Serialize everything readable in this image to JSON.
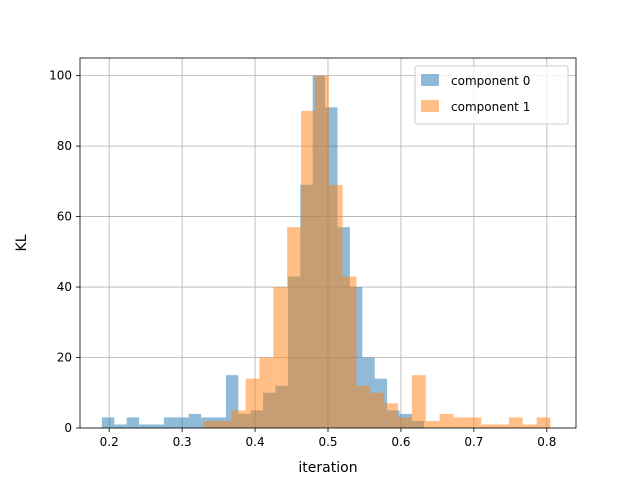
{
  "chart_data": {
    "type": "bar",
    "subtype": "overlapping-histogram",
    "title": "",
    "xlabel": "iteration",
    "ylabel": "KL",
    "xlim": [
      0.16,
      0.84
    ],
    "ylim": [
      0,
      105
    ],
    "xticks": [
      0.2,
      0.3,
      0.4,
      0.5,
      0.6,
      0.7,
      0.8
    ],
    "xtick_labels": [
      "0.2",
      "0.3",
      "0.4",
      "0.5",
      "0.6",
      "0.7",
      "0.8"
    ],
    "yticks": [
      0,
      20,
      40,
      60,
      80,
      100
    ],
    "ytick_labels": [
      "0",
      "20",
      "40",
      "60",
      "80",
      "100"
    ],
    "grid": true,
    "legend": "top-right",
    "series": [
      {
        "name": "component 0",
        "color": "#1f77b4",
        "alpha": 0.5,
        "bin_edges": [
          0.19,
          0.207,
          0.224,
          0.241,
          0.258,
          0.275,
          0.292,
          0.309,
          0.326,
          0.343,
          0.36,
          0.377,
          0.394,
          0.411,
          0.428,
          0.445,
          0.462,
          0.479,
          0.496,
          0.513,
          0.53,
          0.547,
          0.564,
          0.581,
          0.598,
          0.615,
          0.632
        ],
        "counts": [
          3,
          1,
          3,
          1,
          1,
          3,
          3,
          4,
          3,
          3,
          15,
          4,
          5,
          10,
          12,
          43,
          69,
          100,
          91,
          57,
          40,
          20,
          14,
          5,
          4,
          2
        ]
      },
      {
        "name": "component 1",
        "color": "#ff7f0e",
        "alpha": 0.5,
        "bin_edges": [
          0.33,
          0.349,
          0.368,
          0.387,
          0.406,
          0.425,
          0.444,
          0.463,
          0.482,
          0.501,
          0.52,
          0.539,
          0.558,
          0.577,
          0.596,
          0.615,
          0.634,
          0.653,
          0.672,
          0.691,
          0.71,
          0.729,
          0.748,
          0.767,
          0.786,
          0.805
        ],
        "counts": [
          2,
          2,
          5,
          14,
          20,
          40,
          57,
          90,
          100,
          69,
          43,
          12,
          10,
          7,
          3,
          15,
          2,
          4,
          3,
          3,
          1,
          1,
          3,
          1,
          3
        ]
      }
    ]
  }
}
